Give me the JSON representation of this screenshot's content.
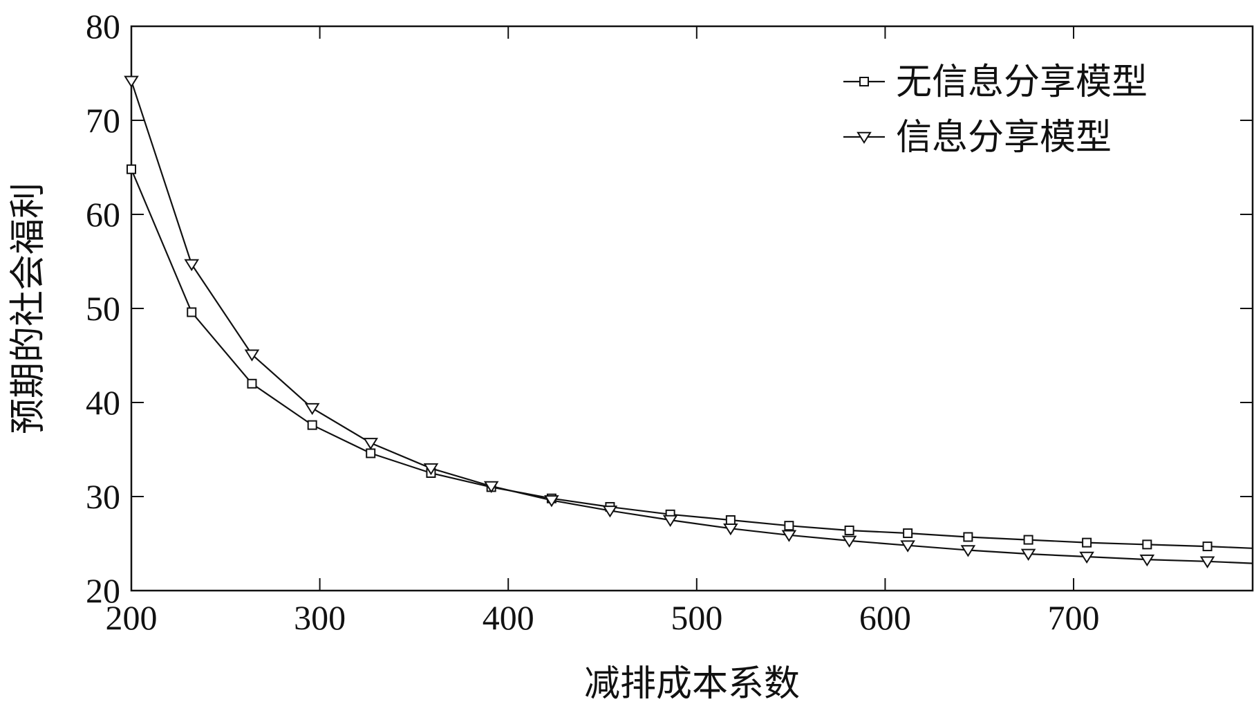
{
  "chart_data": {
    "type": "line",
    "xlabel": "减排成本系数",
    "ylabel": "预期的社会福利",
    "xlim": [
      200,
      795
    ],
    "ylim": [
      20,
      80
    ],
    "xticks": [
      200,
      300,
      400,
      500,
      600,
      700
    ],
    "yticks": [
      20,
      30,
      40,
      50,
      60,
      70,
      80
    ],
    "legend_position": "top-right",
    "grid": false,
    "series": [
      {
        "name": "无信息分享模型",
        "marker": "square",
        "x": [
          200,
          232,
          264,
          296,
          327,
          359,
          391,
          423,
          454,
          486,
          518,
          549,
          581,
          612,
          644,
          676,
          707,
          739,
          771,
          795
        ],
        "y": [
          64.8,
          49.6,
          42.0,
          37.6,
          34.6,
          32.5,
          31.0,
          29.8,
          28.9,
          28.1,
          27.5,
          26.9,
          26.4,
          26.1,
          25.7,
          25.4,
          25.1,
          24.9,
          24.7,
          24.5
        ]
      },
      {
        "name": "信息分享模型",
        "marker": "triangle-down",
        "x": [
          200,
          232,
          264,
          296,
          327,
          359,
          391,
          423,
          454,
          486,
          518,
          549,
          581,
          612,
          644,
          676,
          707,
          739,
          771,
          795
        ],
        "y": [
          74.2,
          54.7,
          45.1,
          39.4,
          35.7,
          33.0,
          31.1,
          29.6,
          28.5,
          27.5,
          26.6,
          25.9,
          25.3,
          24.8,
          24.3,
          23.9,
          23.6,
          23.3,
          23.1,
          22.9
        ]
      }
    ]
  }
}
